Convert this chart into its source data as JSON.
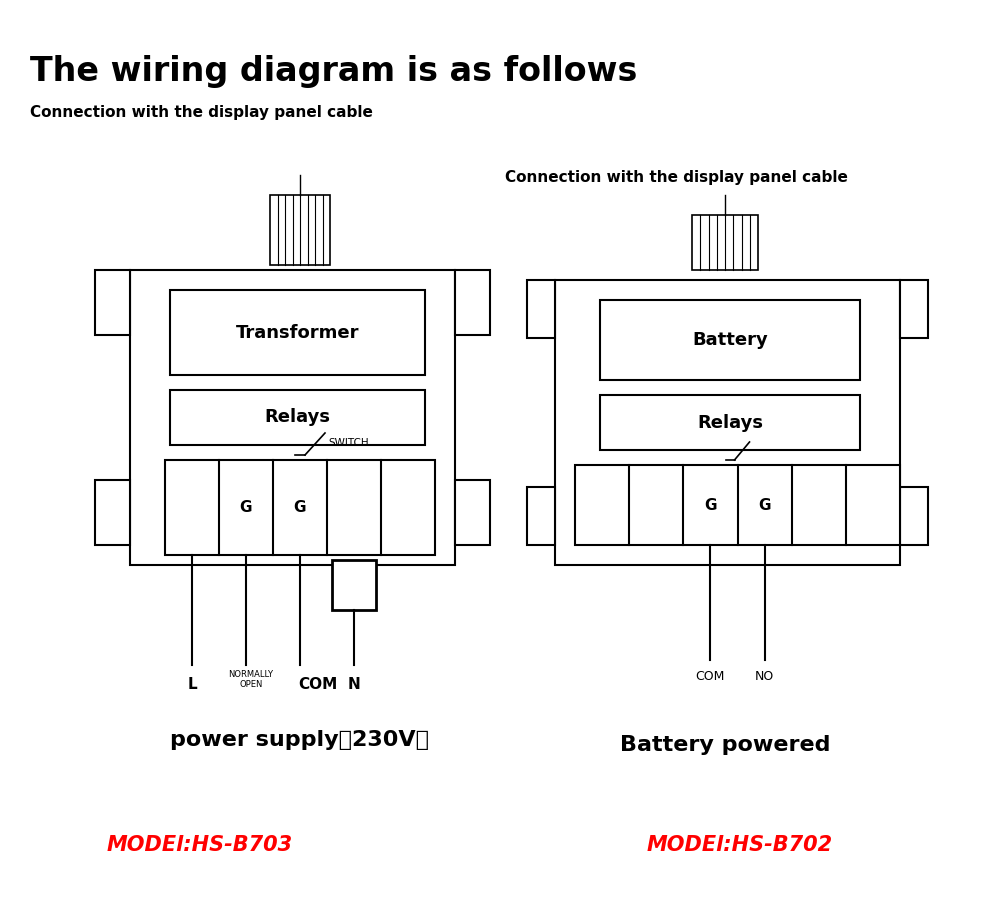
{
  "title": "The wiring diagram is as follows",
  "title_fontsize": 24,
  "bg_color": "#ffffff",
  "text_color": "#000000",
  "line_color": "#000000",
  "model_color": "#ff0000",
  "left_label": "Connection with the display panel cable",
  "right_label": "Connection with the display panel cable",
  "left_caption": "power supply（230V）",
  "right_caption": "Battery powered",
  "left_model": "MODEl:HS-B703",
  "right_model": "MODEl:HS-B702"
}
